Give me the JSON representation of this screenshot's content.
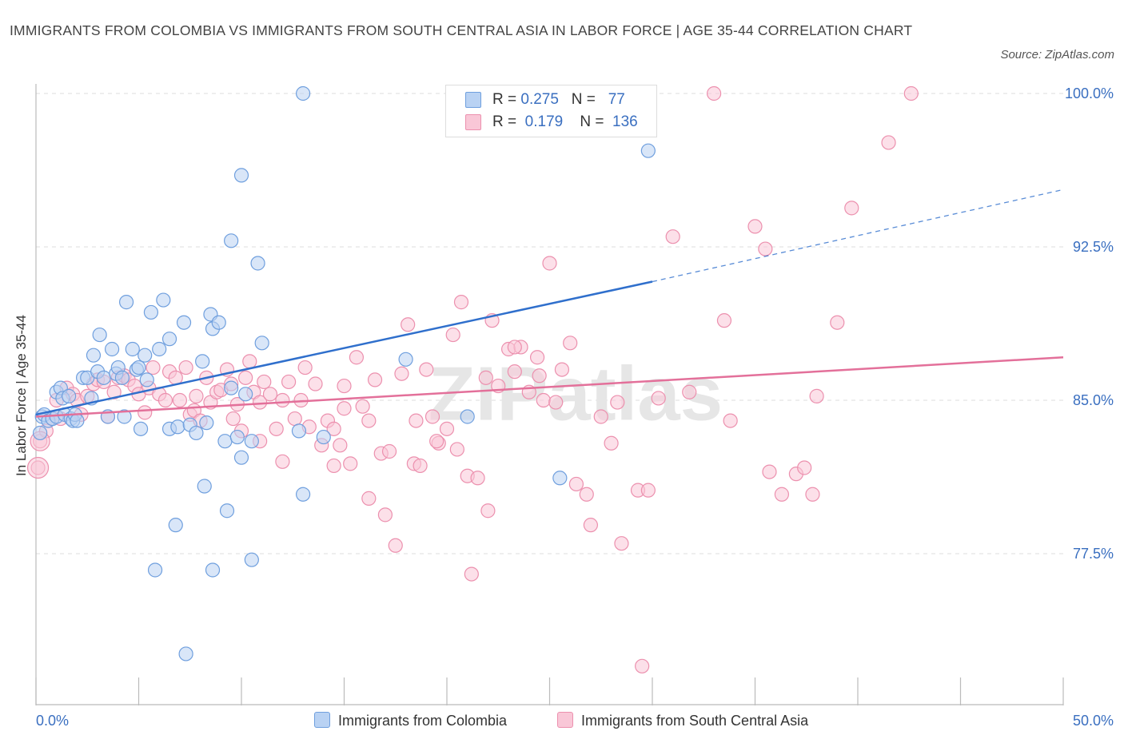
{
  "title": "IMMIGRANTS FROM COLOMBIA VS IMMIGRANTS FROM SOUTH CENTRAL ASIA IN LABOR FORCE | AGE 35-44 CORRELATION CHART",
  "source": "Source: ZipAtlas.com",
  "watermark": "ZIPatlas",
  "colors": {
    "blue_fill": "#b9d2f3",
    "blue_stroke": "#6f9fde",
    "blue_line": "#2f6fcc",
    "pink_fill": "#f9c7d7",
    "pink_stroke": "#ec90ae",
    "pink_line": "#e3709a",
    "axis_label": "#3a6fc0",
    "grid": "#dddddd"
  },
  "stats_box": {
    "rows": [
      {
        "r_label": "R =",
        "r_value": "0.275",
        "n_label": "N =",
        "n_value": "77",
        "color": "#b9d2f3",
        "border": "#6f9fde"
      },
      {
        "r_label": "R =",
        "r_value": "0.179",
        "n_label": "N =",
        "n_value": "136",
        "color": "#f9c7d7",
        "border": "#ec90ae"
      }
    ]
  },
  "legend": [
    {
      "label": "Immigrants from Colombia",
      "color": "#b9d2f3",
      "border": "#6f9fde"
    },
    {
      "label": "Immigrants from South Central Asia",
      "color": "#f9c7d7",
      "border": "#ec90ae"
    }
  ],
  "chart_data": {
    "type": "scatter",
    "title": "IMMIGRANTS FROM COLOMBIA VS IMMIGRANTS FROM SOUTH CENTRAL ASIA IN LABOR FORCE | AGE 35-44 CORRELATION CHART",
    "xlabel": "",
    "ylabel": "In Labor Force | Age 35-44",
    "xlim": [
      0,
      50
    ],
    "ylim": [
      70.2,
      100.7
    ],
    "x_tick_labels": [
      {
        "value": 0,
        "label": "0.0%"
      },
      {
        "value": 50,
        "label": "50.0%"
      }
    ],
    "y_tick_labels": [
      {
        "value": 100,
        "label": "100.0%"
      },
      {
        "value": 92.5,
        "label": "92.5%"
      },
      {
        "value": 85,
        "label": "85.0%"
      },
      {
        "value": 77.5,
        "label": "77.5%"
      }
    ],
    "x_minor_ticks": [
      0,
      5,
      10,
      15,
      20,
      25,
      30,
      35,
      40,
      45,
      50
    ],
    "grid": true,
    "legend_position": "bottom-center",
    "series": [
      {
        "name": "Immigrants from Colombia",
        "color": "#b9d2f3",
        "trend": {
          "x": [
            0,
            30
          ],
          "y": [
            84.3,
            90.8
          ],
          "dashed_extension": {
            "x": [
              30,
              50
            ],
            "y": [
              90.8,
              95.3
            ]
          }
        },
        "points": [
          [
            0.2,
            83.4
          ],
          [
            0.3,
            84.2
          ],
          [
            0.4,
            84.3
          ],
          [
            0.6,
            84.0
          ],
          [
            0.8,
            84.1
          ],
          [
            1.0,
            84.2
          ],
          [
            1.0,
            85.4
          ],
          [
            1.2,
            85.6
          ],
          [
            1.3,
            85.1
          ],
          [
            1.4,
            84.3
          ],
          [
            1.6,
            85.2
          ],
          [
            1.7,
            84.1
          ],
          [
            1.8,
            84.0
          ],
          [
            1.9,
            84.3
          ],
          [
            2.0,
            84.0
          ],
          [
            2.3,
            86.1
          ],
          [
            2.5,
            86.1
          ],
          [
            2.7,
            85.1
          ],
          [
            2.8,
            87.2
          ],
          [
            3.0,
            86.4
          ],
          [
            3.1,
            88.2
          ],
          [
            3.3,
            86.1
          ],
          [
            3.5,
            84.2
          ],
          [
            3.7,
            87.5
          ],
          [
            3.9,
            86.3
          ],
          [
            4.0,
            86.6
          ],
          [
            4.2,
            86.1
          ],
          [
            4.3,
            84.2
          ],
          [
            4.4,
            89.8
          ],
          [
            4.7,
            87.5
          ],
          [
            4.9,
            86.5
          ],
          [
            5.0,
            86.6
          ],
          [
            5.1,
            83.6
          ],
          [
            5.3,
            87.2
          ],
          [
            5.4,
            86.0
          ],
          [
            5.6,
            89.3
          ],
          [
            6.0,
            87.5
          ],
          [
            6.2,
            89.9
          ],
          [
            6.5,
            88.0
          ],
          [
            6.5,
            83.6
          ],
          [
            6.9,
            83.7
          ],
          [
            7.2,
            88.8
          ],
          [
            7.5,
            83.8
          ],
          [
            7.8,
            83.4
          ],
          [
            8.1,
            86.9
          ],
          [
            8.3,
            83.9
          ],
          [
            8.5,
            89.2
          ],
          [
            8.6,
            88.5
          ],
          [
            8.9,
            88.8
          ],
          [
            9.2,
            83.0
          ],
          [
            9.5,
            85.6
          ],
          [
            9.8,
            83.2
          ],
          [
            10.0,
            82.2
          ],
          [
            10.2,
            85.3
          ],
          [
            10.5,
            83.0
          ],
          [
            11.0,
            87.8
          ],
          [
            12.8,
            83.5
          ],
          [
            14.0,
            83.2
          ],
          [
            18.0,
            87.0
          ],
          [
            21.0,
            84.2
          ],
          [
            25.5,
            81.2
          ],
          [
            26.5,
            100.0
          ],
          [
            29.8,
            97.2
          ],
          [
            13.0,
            100.0
          ],
          [
            10.0,
            96.0
          ],
          [
            9.5,
            92.8
          ],
          [
            10.8,
            91.7
          ],
          [
            6.8,
            78.9
          ],
          [
            8.2,
            80.8
          ],
          [
            9.3,
            79.6
          ],
          [
            5.8,
            76.7
          ],
          [
            8.6,
            76.7
          ],
          [
            10.5,
            77.2
          ],
          [
            7.3,
            72.6
          ],
          [
            13.0,
            80.4
          ]
        ]
      },
      {
        "name": "Immigrants from South Central Asia",
        "color": "#f9c7d7",
        "trend": {
          "x": [
            0,
            50
          ],
          "y": [
            84.2,
            87.1
          ]
        },
        "points": [
          [
            0.1,
            81.7
          ],
          [
            0.2,
            83.0
          ],
          [
            0.5,
            83.5
          ],
          [
            0.8,
            84.1
          ],
          [
            1.0,
            85.0
          ],
          [
            1.2,
            84.1
          ],
          [
            1.5,
            85.6
          ],
          [
            1.8,
            85.3
          ],
          [
            2.0,
            85.0
          ],
          [
            2.2,
            84.3
          ],
          [
            2.5,
            85.2
          ],
          [
            2.8,
            85.8
          ],
          [
            3.0,
            86.0
          ],
          [
            3.3,
            85.9
          ],
          [
            3.5,
            84.2
          ],
          [
            3.8,
            85.4
          ],
          [
            4.0,
            86.1
          ],
          [
            4.3,
            86.2
          ],
          [
            4.5,
            86.0
          ],
          [
            4.8,
            85.7
          ],
          [
            5.0,
            85.3
          ],
          [
            5.3,
            84.4
          ],
          [
            5.5,
            85.6
          ],
          [
            5.7,
            86.6
          ],
          [
            6.0,
            85.3
          ],
          [
            6.3,
            85.0
          ],
          [
            6.5,
            86.4
          ],
          [
            6.8,
            86.1
          ],
          [
            7.0,
            85.0
          ],
          [
            7.3,
            86.6
          ],
          [
            7.5,
            84.3
          ],
          [
            7.7,
            84.5
          ],
          [
            7.8,
            85.2
          ],
          [
            8.0,
            84.0
          ],
          [
            8.3,
            86.1
          ],
          [
            8.5,
            84.9
          ],
          [
            8.8,
            85.4
          ],
          [
            9.0,
            85.5
          ],
          [
            9.3,
            86.5
          ],
          [
            9.5,
            85.8
          ],
          [
            9.6,
            84.1
          ],
          [
            9.8,
            84.8
          ],
          [
            10.0,
            83.5
          ],
          [
            10.2,
            86.1
          ],
          [
            10.4,
            86.9
          ],
          [
            10.6,
            85.4
          ],
          [
            10.9,
            84.9
          ],
          [
            11.1,
            85.9
          ],
          [
            11.4,
            85.3
          ],
          [
            11.7,
            83.6
          ],
          [
            12.0,
            85.0
          ],
          [
            12.3,
            85.9
          ],
          [
            12.6,
            84.1
          ],
          [
            12.9,
            85.0
          ],
          [
            13.1,
            86.6
          ],
          [
            13.3,
            83.7
          ],
          [
            13.6,
            85.8
          ],
          [
            13.9,
            82.8
          ],
          [
            14.2,
            84.0
          ],
          [
            14.5,
            83.6
          ],
          [
            14.8,
            82.8
          ],
          [
            15.0,
            85.7
          ],
          [
            15.3,
            81.9
          ],
          [
            15.6,
            87.1
          ],
          [
            15.9,
            84.7
          ],
          [
            16.2,
            84.0
          ],
          [
            16.5,
            86.0
          ],
          [
            16.8,
            82.4
          ],
          [
            17.0,
            79.4
          ],
          [
            17.2,
            82.5
          ],
          [
            17.5,
            77.9
          ],
          [
            17.8,
            86.3
          ],
          [
            18.1,
            88.7
          ],
          [
            18.4,
            81.9
          ],
          [
            18.7,
            81.8
          ],
          [
            19.0,
            86.5
          ],
          [
            19.3,
            84.2
          ],
          [
            19.6,
            82.9
          ],
          [
            20.0,
            83.6
          ],
          [
            20.3,
            88.2
          ],
          [
            20.7,
            89.8
          ],
          [
            21.0,
            81.3
          ],
          [
            21.5,
            81.2
          ],
          [
            21.9,
            86.1
          ],
          [
            22.2,
            88.9
          ],
          [
            22.5,
            85.7
          ],
          [
            23.0,
            87.5
          ],
          [
            23.3,
            86.4
          ],
          [
            23.6,
            87.6
          ],
          [
            24.0,
            85.4
          ],
          [
            24.4,
            87.1
          ],
          [
            24.7,
            85.0
          ],
          [
            25.0,
            91.7
          ],
          [
            25.3,
            84.9
          ],
          [
            25.6,
            86.5
          ],
          [
            26.3,
            80.9
          ],
          [
            26.8,
            80.4
          ],
          [
            27.5,
            84.2
          ],
          [
            28.0,
            82.9
          ],
          [
            28.3,
            84.9
          ],
          [
            29.3,
            80.6
          ],
          [
            29.8,
            80.6
          ],
          [
            30.3,
            85.1
          ],
          [
            31.0,
            93.0
          ],
          [
            31.8,
            85.4
          ],
          [
            33.0,
            100.0
          ],
          [
            33.5,
            88.9
          ],
          [
            33.8,
            84.0
          ],
          [
            35.0,
            93.5
          ],
          [
            35.5,
            92.4
          ],
          [
            35.7,
            81.5
          ],
          [
            36.3,
            80.4
          ],
          [
            37.0,
            81.4
          ],
          [
            37.4,
            81.7
          ],
          [
            37.8,
            80.4
          ],
          [
            38.0,
            85.2
          ],
          [
            39.0,
            88.8
          ],
          [
            39.7,
            94.4
          ],
          [
            41.5,
            97.6
          ],
          [
            42.6,
            100.0
          ],
          [
            23.3,
            87.6
          ],
          [
            24.5,
            86.2
          ],
          [
            26.0,
            87.8
          ],
          [
            28.5,
            78.0
          ],
          [
            29.5,
            72.0
          ],
          [
            22.0,
            79.6
          ],
          [
            21.2,
            76.5
          ],
          [
            27.0,
            78.9
          ],
          [
            10.9,
            83.0
          ],
          [
            12.0,
            82.0
          ],
          [
            15.0,
            84.6
          ],
          [
            16.2,
            80.2
          ],
          [
            18.5,
            84.0
          ],
          [
            19.5,
            83.0
          ],
          [
            20.5,
            82.6
          ],
          [
            14.5,
            81.8
          ]
        ]
      }
    ]
  }
}
